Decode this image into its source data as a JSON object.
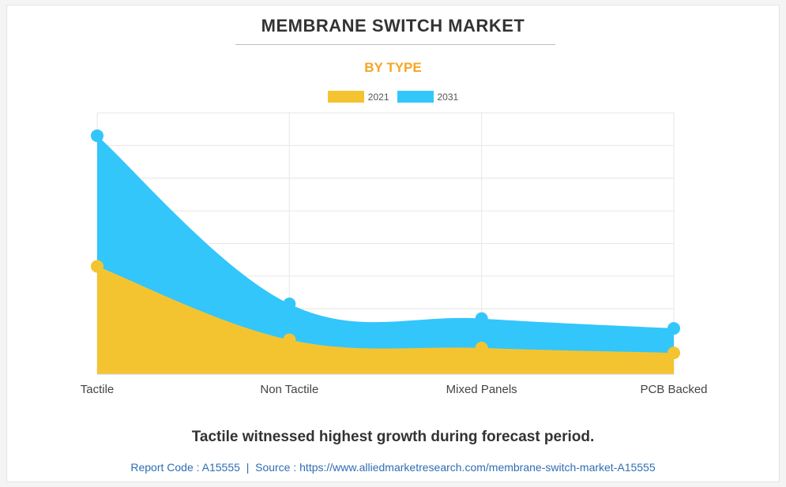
{
  "title": "MEMBRANE SWITCH MARKET",
  "subtitle": "BY TYPE",
  "caption": "Tactile witnessed highest growth during forecast period.",
  "footer": {
    "report_code": "Report Code : A15555",
    "separator": "|",
    "source": "Source : https://www.alliedmarketresearch.com/membrane-switch-market-A15555"
  },
  "colors": {
    "series_2021": "#f4c430",
    "series_2031": "#33c6fb"
  },
  "chart_data": {
    "type": "area",
    "stacked": true,
    "categories": [
      "Tactile",
      "Non Tactile",
      "Mixed Panels",
      "PCB Backed"
    ],
    "series": [
      {
        "name": "2021",
        "values": [
          3.3,
          1.05,
          0.8,
          0.65
        ]
      },
      {
        "name": "2031",
        "values": [
          4.0,
          1.1,
          0.9,
          0.75
        ]
      }
    ],
    "ylim": [
      0,
      8
    ],
    "grid": true,
    "legend_position": "top-center"
  }
}
